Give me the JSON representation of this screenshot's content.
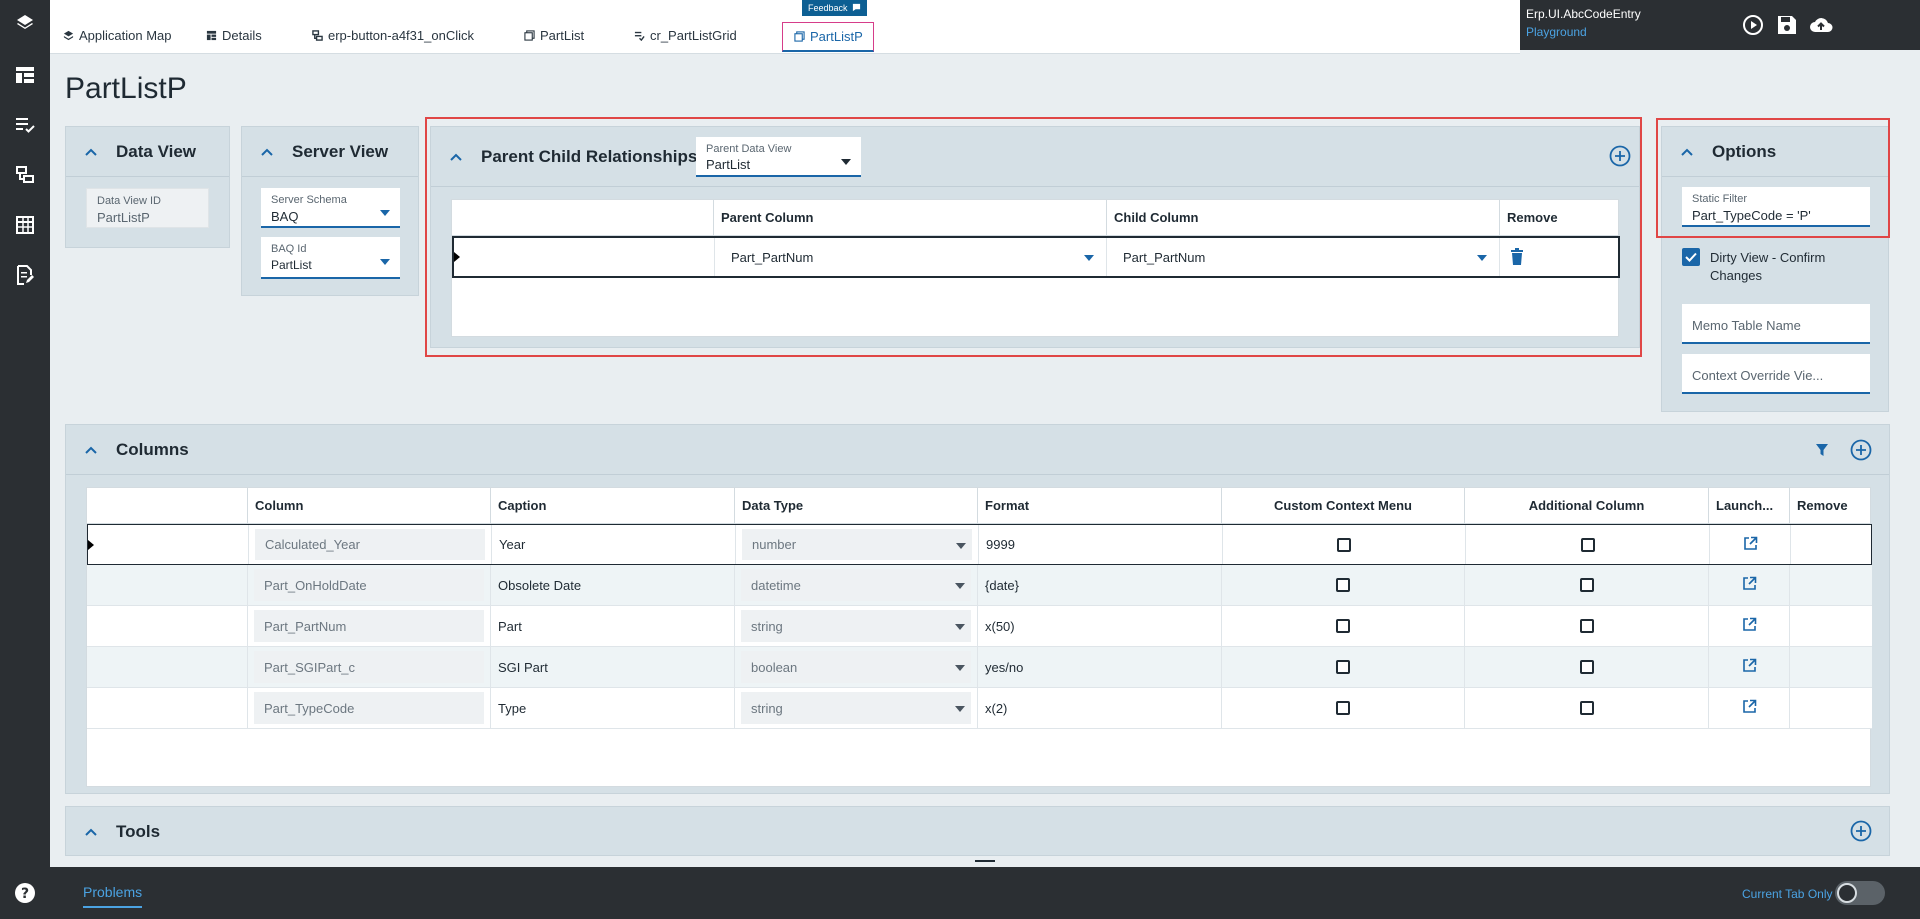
{
  "tabs": [
    {
      "label": "Application Map"
    },
    {
      "label": "Details"
    },
    {
      "label": "erp-button-a4f31_onClick"
    },
    {
      "label": "PartList"
    },
    {
      "label": "cr_PartListGrid"
    },
    {
      "label": "PartListP"
    }
  ],
  "feedback_label": "Feedback",
  "app_header": {
    "title": "Erp.UI.AbcCodeEntry",
    "subtitle": "Playground"
  },
  "page_title": "PartListP",
  "data_view_panel": {
    "title": "Data View",
    "data_view_id": {
      "label": "Data View ID",
      "value": "PartListP"
    }
  },
  "server_view_panel": {
    "title": "Server View",
    "server_schema": {
      "label": "Server Schema",
      "value": "BAQ"
    },
    "baq_id": {
      "label": "BAQ Id",
      "value": "PartList"
    }
  },
  "pcr_panel": {
    "title": "Parent Child Relationships",
    "parent_data_view": {
      "label": "Parent Data View",
      "value": "PartList"
    },
    "headers": [
      "Parent Column",
      "Child Column",
      "Remove"
    ],
    "rows": [
      {
        "parent": "Part_PartNum",
        "child": "Part_PartNum"
      }
    ]
  },
  "options_panel": {
    "title": "Options",
    "static_filter": {
      "label": "Static Filter",
      "value": "Part_TypeCode = 'P'"
    },
    "dirty_view": {
      "label_line1": "Dirty View - Confirm",
      "label_line2": "Changes",
      "checked": true
    },
    "memo_table_name": {
      "placeholder": "Memo Table Name"
    },
    "context_override": {
      "placeholder": "Context Override Vie..."
    }
  },
  "columns_panel": {
    "title": "Columns",
    "headers": [
      "Column",
      "Caption",
      "Data Type",
      "Format",
      "Custom Context Menu",
      "Additional Column",
      "Launch...",
      "Remove"
    ],
    "rows": [
      {
        "column": "Calculated_Year",
        "caption": "Year",
        "data_type": "number",
        "format": "9999",
        "custom_context_menu": false,
        "additional_column": false
      },
      {
        "column": "Part_OnHoldDate",
        "caption": "Obsolete Date",
        "data_type": "datetime",
        "format": "{date}",
        "custom_context_menu": false,
        "additional_column": false
      },
      {
        "column": "Part_PartNum",
        "caption": "Part",
        "data_type": "string",
        "format": "x(50)",
        "custom_context_menu": false,
        "additional_column": false
      },
      {
        "column": "Part_SGIPart_c",
        "caption": "SGI Part",
        "data_type": "boolean",
        "format": "yes/no",
        "custom_context_menu": false,
        "additional_column": false
      },
      {
        "column": "Part_TypeCode",
        "caption": "Type",
        "data_type": "string",
        "format": "x(2)",
        "custom_context_menu": false,
        "additional_column": false
      }
    ]
  },
  "tools_panel": {
    "title": "Tools"
  },
  "bottom_bar": {
    "problems_label": "Problems",
    "current_tab_only_label": "Current Tab Only",
    "current_tab_only_on": false
  },
  "colors": {
    "accent": "#1a66a8",
    "highlight_box": "#e04646",
    "rail": "#2b2f33",
    "panel": "#d5e0e6"
  }
}
